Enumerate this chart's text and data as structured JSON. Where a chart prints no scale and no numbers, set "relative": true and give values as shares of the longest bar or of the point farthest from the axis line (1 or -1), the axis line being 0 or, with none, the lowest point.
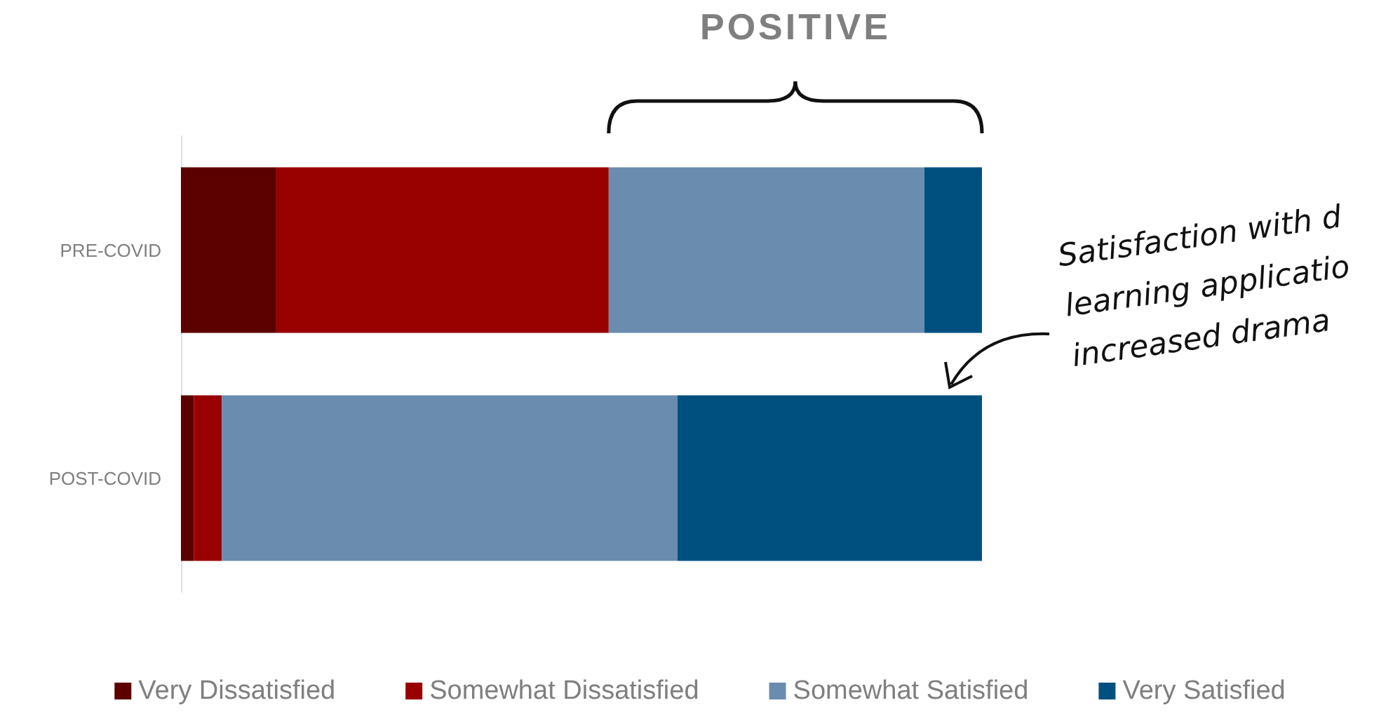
{
  "chart_data": {
    "type": "bar",
    "orientation": "horizontal",
    "stacked": true,
    "relative": true,
    "categories": [
      "PRE-COVID",
      "POST-COVID"
    ],
    "series": [
      {
        "name": "Very Dissatisfied",
        "color": "#5c0000",
        "values": [
          0.119,
          0.016
        ]
      },
      {
        "name": "Somewhat Dissatisfied",
        "color": "#990000",
        "values": [
          0.415,
          0.035
        ]
      },
      {
        "name": "Somewhat Satisfied",
        "color": "#6a8caf",
        "values": [
          0.394,
          0.569
        ]
      },
      {
        "name": "Very Satisfied",
        "color": "#00507f",
        "values": [
          0.072,
          0.38
        ]
      }
    ],
    "annotations": [
      "POSITIVE",
      "Satisfaction with d\nlearning applicatio\nincreased drama"
    ],
    "legend": "bottom"
  }
}
